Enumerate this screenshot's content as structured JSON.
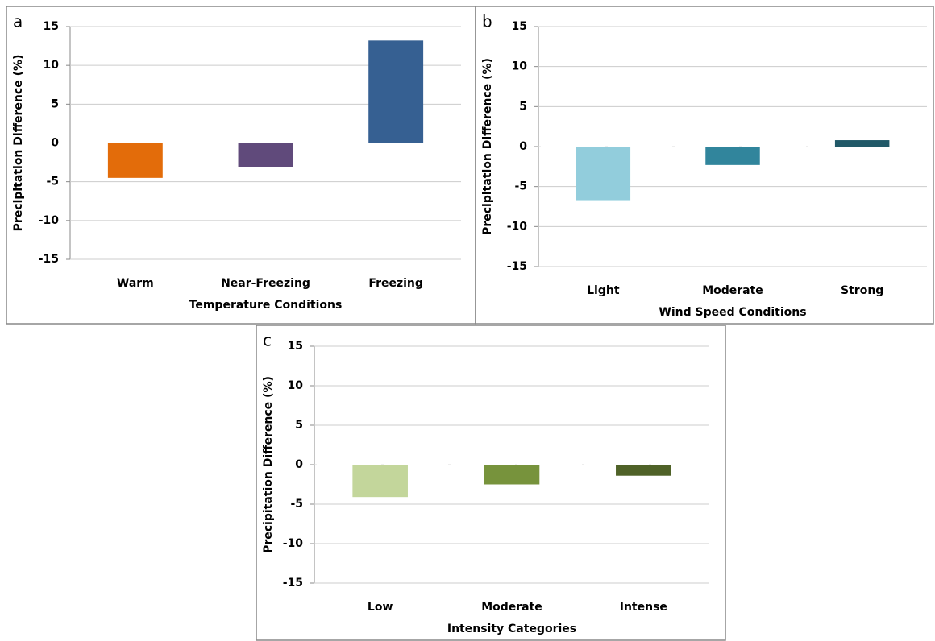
{
  "chart_data": [
    {
      "type": "bar",
      "panel_label": "a",
      "y_label": "Precipitation Difference (%)",
      "x_label": "Temperature Conditions",
      "categories": [
        "Warm",
        "Near-Freezing",
        "Freezing"
      ],
      "values": [
        -4.5,
        -3.1,
        13.2
      ],
      "colors": [
        "#e36c0a",
        "#604a7b",
        "#366092"
      ],
      "ylim": [
        -15,
        15
      ],
      "yticks": [
        -15,
        -10,
        -5,
        0,
        5,
        10,
        15
      ],
      "grid": true
    },
    {
      "type": "bar",
      "panel_label": "b",
      "y_label": "Precipitation Difference (%)",
      "x_label": "Wind Speed Conditions",
      "categories": [
        "Light",
        "Moderate",
        "Strong"
      ],
      "values": [
        -6.7,
        -2.3,
        0.8
      ],
      "colors": [
        "#92cddc",
        "#31859c",
        "#215968"
      ],
      "ylim": [
        -15,
        15
      ],
      "yticks": [
        -15,
        -10,
        -5,
        0,
        5,
        10,
        15
      ],
      "grid": true
    },
    {
      "type": "bar",
      "panel_label": "c",
      "y_label": "Precipitation Difference (%)",
      "x_label": "Intensity Categories",
      "categories": [
        "Low",
        "Moderate",
        "Intense"
      ],
      "values": [
        -4.1,
        -2.5,
        -1.4
      ],
      "colors": [
        "#c3d69b",
        "#77933c",
        "#4f6228"
      ],
      "ylim": [
        -15,
        15
      ],
      "yticks": [
        -15,
        -10,
        -5,
        0,
        5,
        10,
        15
      ],
      "grid": true
    }
  ]
}
